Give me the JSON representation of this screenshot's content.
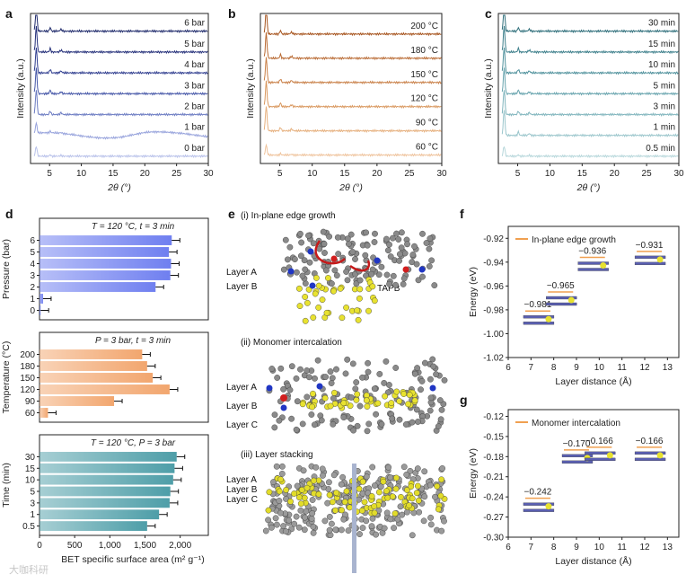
{
  "panels": {
    "a": "a",
    "b": "b",
    "c": "c",
    "d": "d",
    "e": "e",
    "f": "f",
    "g": "g"
  },
  "chart_data": [
    {
      "id": "a",
      "type": "line",
      "xlabel": "2θ (°)",
      "ylabel": "Intensity (a.u.)",
      "xlim": [
        2,
        30
      ],
      "xticks": [
        5,
        10,
        15,
        20,
        25,
        30
      ],
      "series": [
        {
          "name": "6 bar",
          "color": "#1f2a6b"
        },
        {
          "name": "5 bar",
          "color": "#25307a"
        },
        {
          "name": "4 bar",
          "color": "#2f3d8f"
        },
        {
          "name": "3 bar",
          "color": "#4657a8"
        },
        {
          "name": "2 bar",
          "color": "#6b7bc2"
        },
        {
          "name": "1 bar",
          "color": "#97a3dc"
        },
        {
          "name": "0 bar",
          "color": "#b9c2ea"
        }
      ]
    },
    {
      "id": "b",
      "type": "line",
      "xlabel": "2θ (°)",
      "ylabel": "Intensity (a.u.)",
      "xlim": [
        2,
        30
      ],
      "xticks": [
        5,
        10,
        15,
        20,
        25,
        30
      ],
      "series": [
        {
          "name": "200 °C",
          "color": "#a7551f"
        },
        {
          "name": "180 °C",
          "color": "#b96a33"
        },
        {
          "name": "150 °C",
          "color": "#c98048"
        },
        {
          "name": "120 °C",
          "color": "#d9985f"
        },
        {
          "name": "90 °C",
          "color": "#e6b07e"
        },
        {
          "name": "60 °C",
          "color": "#efc39c"
        }
      ]
    },
    {
      "id": "c",
      "type": "line",
      "xlabel": "2θ (°)",
      "ylabel": "Intensity (a.u.)",
      "xlim": [
        2,
        30
      ],
      "xticks": [
        5,
        10,
        15,
        20,
        25,
        30
      ],
      "series": [
        {
          "name": "30 min",
          "color": "#2e6e7a"
        },
        {
          "name": "15 min",
          "color": "#3d7f8b"
        },
        {
          "name": "10 min",
          "color": "#4f919c"
        },
        {
          "name": "5 min",
          "color": "#66a3ad"
        },
        {
          "name": "3 min",
          "color": "#80b5bd"
        },
        {
          "name": "1 min",
          "color": "#9bc6cc"
        },
        {
          "name": "0.5 min",
          "color": "#b7d7db"
        }
      ]
    },
    {
      "id": "d",
      "type": "bar",
      "xlabel": "BET specific surface area (m² g⁻¹)",
      "xlim": [
        0,
        2400
      ],
      "xticks": [
        0,
        500,
        1000,
        1500,
        2000
      ],
      "xticklabels": [
        "0",
        "500",
        "1,000",
        "1,500",
        "2,000"
      ],
      "subplots": [
        {
          "ylabel": "Pressure (bar)",
          "condition": "T = 120 °C, t = 3 min",
          "color": "#6f7ff0",
          "categories": [
            "6",
            "5",
            "4",
            "3",
            "2",
            "1",
            "0"
          ],
          "values": [
            1880,
            1840,
            1870,
            1860,
            1650,
            50,
            15
          ]
        },
        {
          "ylabel": "Temperature (°C)",
          "condition": "P = 3 bar, t = 3 min",
          "color": "#f2a66e",
          "categories": [
            "200",
            "180",
            "150",
            "120",
            "90",
            "60"
          ],
          "values": [
            1460,
            1530,
            1610,
            1850,
            1060,
            120
          ]
        },
        {
          "ylabel": "Time (min)",
          "condition": "T = 120 °C, P = 3 bar",
          "color": "#4e9ea8",
          "categories": [
            "30",
            "15",
            "10",
            "5",
            "3",
            "1",
            "0.5"
          ],
          "values": [
            1950,
            1920,
            1900,
            1860,
            1850,
            1700,
            1530
          ]
        }
      ]
    },
    {
      "id": "f",
      "type": "scatter",
      "legend": "In-plane edge growth",
      "xlabel": "Layer distance (Å)",
      "ylabel": "Energy (eV)",
      "xlim": [
        6,
        13.5
      ],
      "ylim": [
        -1.02,
        -0.91
      ],
      "xticks": [
        6,
        7,
        8,
        9,
        10,
        11,
        12,
        13
      ],
      "yticks": [
        -1.02,
        -1.0,
        -0.98,
        -0.96,
        -0.94,
        -0.92
      ],
      "points": [
        {
          "x": 7.3,
          "y": -0.981,
          "label": "−0.981"
        },
        {
          "x": 8.3,
          "y": -0.965,
          "label": "−0.965"
        },
        {
          "x": 9.7,
          "y": -0.936,
          "label": "−0.936"
        },
        {
          "x": 12.2,
          "y": -0.931,
          "label": "−0.931"
        }
      ]
    },
    {
      "id": "g",
      "type": "scatter",
      "legend": "Monomer intercalation",
      "xlabel": "Layer distance (Å)",
      "ylabel": "Energy (eV)",
      "xlim": [
        6,
        13.5
      ],
      "ylim": [
        -0.3,
        -0.11
      ],
      "xticks": [
        6,
        7,
        8,
        9,
        10,
        11,
        12,
        13
      ],
      "yticks": [
        -0.3,
        -0.27,
        -0.24,
        -0.21,
        -0.18,
        -0.15,
        -0.12
      ],
      "points": [
        {
          "x": 7.3,
          "y": -0.242,
          "label": "−0.242"
        },
        {
          "x": 9.0,
          "y": -0.17,
          "label": "−0.170"
        },
        {
          "x": 10.0,
          "y": -0.166,
          "label": "−0.166"
        },
        {
          "x": 12.2,
          "y": -0.166,
          "label": "−0.166"
        }
      ]
    }
  ],
  "panel_e": {
    "captions": [
      "(i) In-plane edge growth",
      "(ii) Monomer intercalation",
      "(iii) Layer stacking"
    ],
    "labels_i": [
      "Layer A",
      "Layer B"
    ],
    "labels_ii": [
      "Layer A",
      "Layer B",
      "Layer C"
    ],
    "labels_iii": [
      "Layer A",
      "Layer B",
      "Layer C"
    ],
    "tapb": "TAPB"
  },
  "watermark": "大咖科研"
}
